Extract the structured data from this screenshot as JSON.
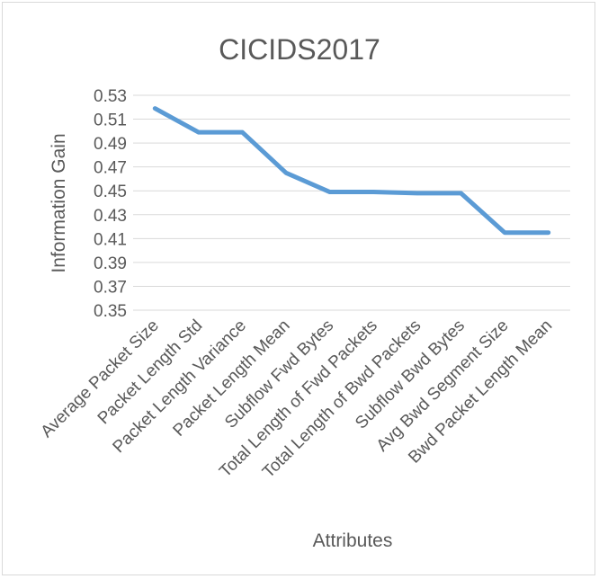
{
  "chart_data": {
    "type": "line",
    "title": "CICIDS2017",
    "xlabel": "Attributes",
    "ylabel": "Information Gain",
    "categories": [
      "Average Packet Size",
      "Packet Length Std",
      "Packet Length Variance",
      "Packet Length Mean",
      "Subflow Fwd Bytes",
      "Total Length of Fwd Packets",
      "Total Length of Bwd Packets",
      "Subflow Bwd Bytes",
      "Avg Bwd Segment Size",
      "Bwd Packet Length Mean"
    ],
    "series": [
      {
        "values": [
          0.519,
          0.499,
          0.499,
          0.465,
          0.449,
          0.449,
          0.448,
          0.448,
          0.415,
          0.415
        ]
      }
    ],
    "yticks": [
      "0.35",
      "0.37",
      "0.39",
      "0.41",
      "0.43",
      "0.45",
      "0.47",
      "0.49",
      "0.51",
      "0.53"
    ],
    "ylim": [
      0.35,
      0.53
    ],
    "grid": true,
    "legend": "none",
    "colors": {
      "line": "#5b9bd5",
      "grid": "#d9d9d9",
      "text": "#595959",
      "border": "#d9d9d9"
    }
  }
}
